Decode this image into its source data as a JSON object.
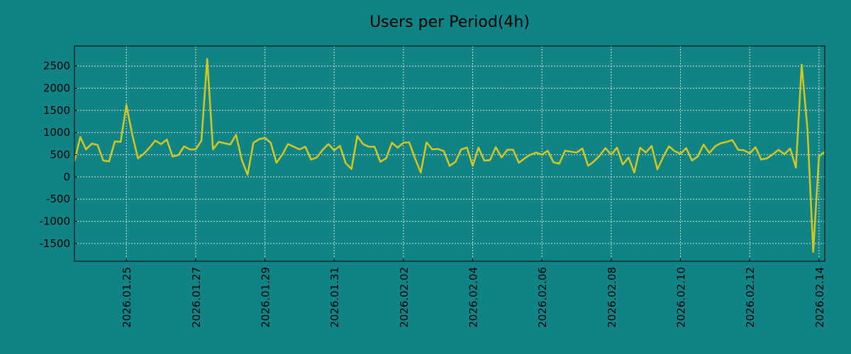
{
  "chart_data": {
    "type": "line",
    "title": "Users per Period(4h)",
    "xlabel": "",
    "ylabel": "",
    "x_tick_labels": [
      "2026.01.25",
      "2026.01.27",
      "2026.01.29",
      "2026.01.31",
      "2026.02.02",
      "2026.02.04",
      "2026.02.06",
      "2026.02.08",
      "2026.02.10",
      "2026.02.12",
      "2026.02.14"
    ],
    "y_ticks": [
      2500,
      2000,
      1500,
      1000,
      500,
      0,
      -500,
      -1000,
      -1500
    ],
    "y_tick_labels": [
      "2500",
      "2000",
      "1500",
      "1000",
      "500",
      "0",
      "-500",
      "-1000",
      "-1500"
    ],
    "ylim": [
      -1900,
      2950
    ],
    "xlim": [
      "2026-01-23 12:00",
      "2026-02-14 04:00"
    ],
    "period_hours": 4,
    "grid": true,
    "colors": {
      "background": "#108385",
      "line": "#d4c81e",
      "grid": "#d9dddb"
    },
    "series": [
      {
        "name": "",
        "x_start": "2026-01-23 12:00",
        "values": [
          350,
          900,
          620,
          750,
          720,
          370,
          350,
          800,
          790,
          1620,
          960,
          420,
          520,
          660,
          820,
          740,
          840,
          460,
          490,
          690,
          620,
          620,
          820,
          2660,
          620,
          790,
          760,
          730,
          950,
          380,
          50,
          770,
          850,
          880,
          770,
          320,
          500,
          740,
          680,
          620,
          680,
          390,
          440,
          610,
          740,
          600,
          700,
          310,
          180,
          920,
          740,
          680,
          680,
          340,
          420,
          770,
          660,
          770,
          780,
          420,
          100,
          780,
          620,
          630,
          580,
          250,
          340,
          620,
          660,
          250,
          660,
          370,
          380,
          670,
          440,
          610,
          610,
          320,
          420,
          500,
          550,
          500,
          590,
          330,
          300,
          590,
          570,
          550,
          640,
          250,
          350,
          480,
          650,
          500,
          660,
          280,
          440,
          100,
          660,
          550,
          700,
          170,
          450,
          690,
          580,
          520,
          650,
          370,
          460,
          730,
          540,
          690,
          760,
          790,
          830,
          610,
          600,
          530,
          670,
          390,
          420,
          510,
          610,
          510,
          640,
          210,
          2530,
          1080,
          -1690,
          460,
          570
        ]
      }
    ]
  }
}
